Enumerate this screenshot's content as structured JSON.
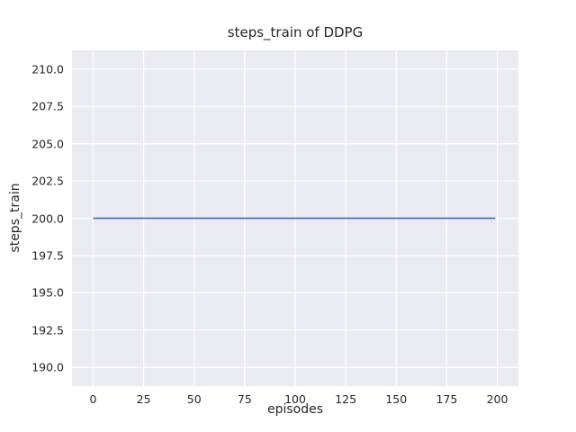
{
  "chart_data": {
    "type": "line",
    "title": "steps_train of DDPG",
    "xlabel": "episodes",
    "ylabel": "steps_train",
    "x_ticks": [
      0,
      25,
      50,
      75,
      100,
      125,
      150,
      175,
      200
    ],
    "y_ticks": [
      190.0,
      192.5,
      195.0,
      197.5,
      200.0,
      202.5,
      205.0,
      207.5,
      210.0
    ],
    "xlim": [
      -10.45,
      210.45
    ],
    "ylim": [
      188.75,
      211.25
    ],
    "grid": true,
    "plot_bg": "#eaeaf2",
    "grid_color": "#ffffff",
    "series": [
      {
        "name": "steps_train",
        "color": "#4c72b0",
        "x": [
          0,
          199
        ],
        "values": [
          200,
          200
        ]
      }
    ]
  }
}
